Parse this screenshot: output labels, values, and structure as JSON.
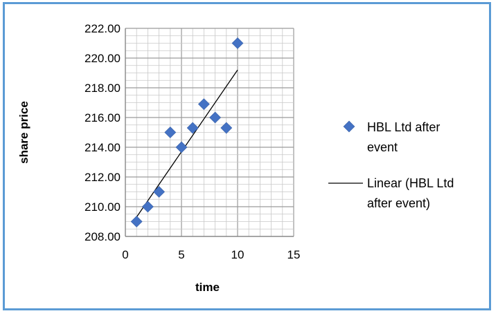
{
  "chart_data": {
    "type": "scatter",
    "xlabel": "time",
    "ylabel": "share price",
    "xlim": [
      0,
      15
    ],
    "ylim": [
      208,
      222
    ],
    "x_ticks": [
      "0",
      "5",
      "10",
      "15"
    ],
    "y_ticks": [
      "208.00",
      "210.00",
      "212.00",
      "214.00",
      "216.00",
      "218.00",
      "220.00",
      "222.00"
    ],
    "grid": true,
    "legend_position": "right",
    "series": [
      {
        "name": "HBL Ltd after event",
        "marker": "diamond",
        "color": "#4472c4",
        "points": [
          {
            "x": 1,
            "y": 209.0
          },
          {
            "x": 2,
            "y": 210.0
          },
          {
            "x": 3,
            "y": 211.0
          },
          {
            "x": 4,
            "y": 215.0
          },
          {
            "x": 5,
            "y": 214.0
          },
          {
            "x": 6,
            "y": 215.3
          },
          {
            "x": 7,
            "y": 216.9
          },
          {
            "x": 8,
            "y": 216.0
          },
          {
            "x": 9,
            "y": 215.3
          },
          {
            "x": 10,
            "y": 221.0
          }
        ]
      }
    ],
    "trendline": {
      "name": "Linear (HBL Ltd after event)",
      "type": "linear",
      "color": "#000000",
      "from": {
        "x": 1,
        "y": 209.3
      },
      "to": {
        "x": 10,
        "y": 219.2
      }
    },
    "legend": [
      {
        "label_lines": [
          "HBL Ltd after",
          "event"
        ],
        "symbol": "diamond"
      },
      {
        "label_lines": [
          "Linear (HBL Ltd",
          "after event)"
        ],
        "symbol": "line"
      }
    ]
  }
}
